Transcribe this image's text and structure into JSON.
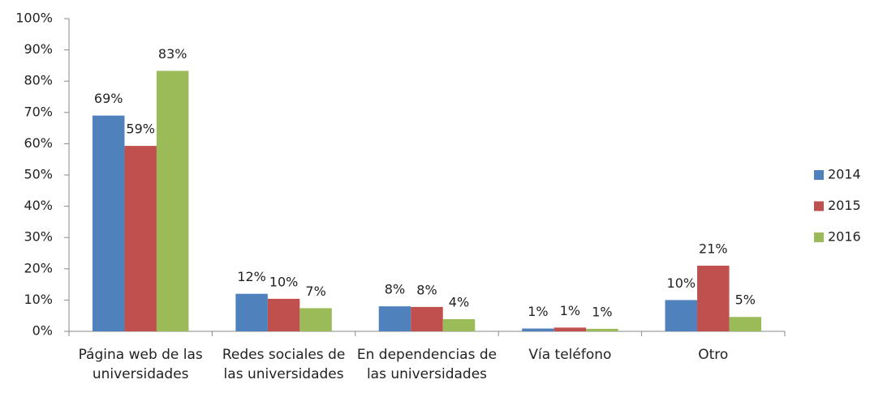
{
  "chart_data": {
    "type": "bar",
    "categories": [
      "Página web de las universidades",
      "Redes sociales de las universidades",
      "En dependencias de las universidades",
      "Vía teléfono",
      "Otro"
    ],
    "series": [
      {
        "name": "2014",
        "color": "#4f81bd",
        "values": [
          69,
          12,
          8,
          0.9,
          10
        ],
        "value_labels": [
          "69%",
          "12%",
          "8%",
          "1%",
          "10%"
        ]
      },
      {
        "name": "2015",
        "color": "#c0504d",
        "values": [
          59.3,
          10.4,
          7.8,
          1.2,
          21
        ],
        "value_labels": [
          "59%",
          "10%",
          "8%",
          "1%",
          "21%"
        ]
      },
      {
        "name": "2016",
        "color": "#9bbb59",
        "values": [
          83.3,
          7.4,
          3.9,
          0.8,
          4.6
        ],
        "value_labels": [
          "83%",
          "7%",
          "4%",
          "1%",
          "5%"
        ]
      }
    ],
    "ylim": [
      0,
      100
    ],
    "yticks": [
      {
        "value": 0,
        "label": "0%"
      },
      {
        "value": 10,
        "label": "10%"
      },
      {
        "value": 20,
        "label": "20%"
      },
      {
        "value": 30,
        "label": "30%"
      },
      {
        "value": 40,
        "label": "40%"
      },
      {
        "value": 50,
        "label": "50%"
      },
      {
        "value": 60,
        "label": "60%"
      },
      {
        "value": 70,
        "label": "70%"
      },
      {
        "value": 80,
        "label": "80%"
      },
      {
        "value": 90,
        "label": "90%"
      },
      {
        "value": 100,
        "label": "100%"
      }
    ],
    "grid": false,
    "legend": "right"
  }
}
